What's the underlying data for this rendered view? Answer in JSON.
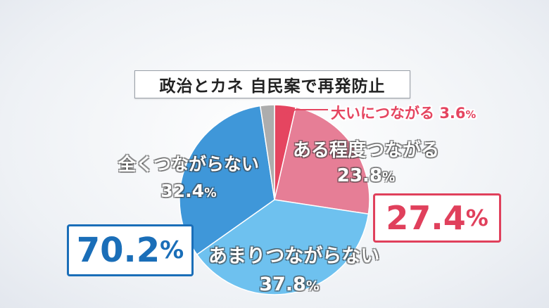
{
  "title": "政治とカネ 自民案で再発防止",
  "chart_data": {
    "type": "pie",
    "start_angle_deg": 0,
    "direction": "clockwise",
    "slices": [
      {
        "label": "大いにつながる",
        "value": 3.6,
        "display": "3.6",
        "color": "#e54560"
      },
      {
        "label": "ある程度つながる",
        "value": 23.8,
        "display": "23.8",
        "color": "#e67e96"
      },
      {
        "label": "あまりつながらない",
        "value": 37.8,
        "display": "37.8",
        "color": "#6ec1ef"
      },
      {
        "label": "全くつながらない",
        "value": 32.4,
        "display": "32.4",
        "color": "#3f97d9"
      },
      {
        "label": "",
        "value": 2.4,
        "display": "",
        "color": "#adadad"
      }
    ],
    "pct_sign": "%"
  },
  "totals": {
    "positive": {
      "value": "27.4",
      "pct": "%",
      "color": "#e0405c"
    },
    "negative": {
      "value": "70.2",
      "pct": "%",
      "color": "#1a6eb8"
    }
  }
}
